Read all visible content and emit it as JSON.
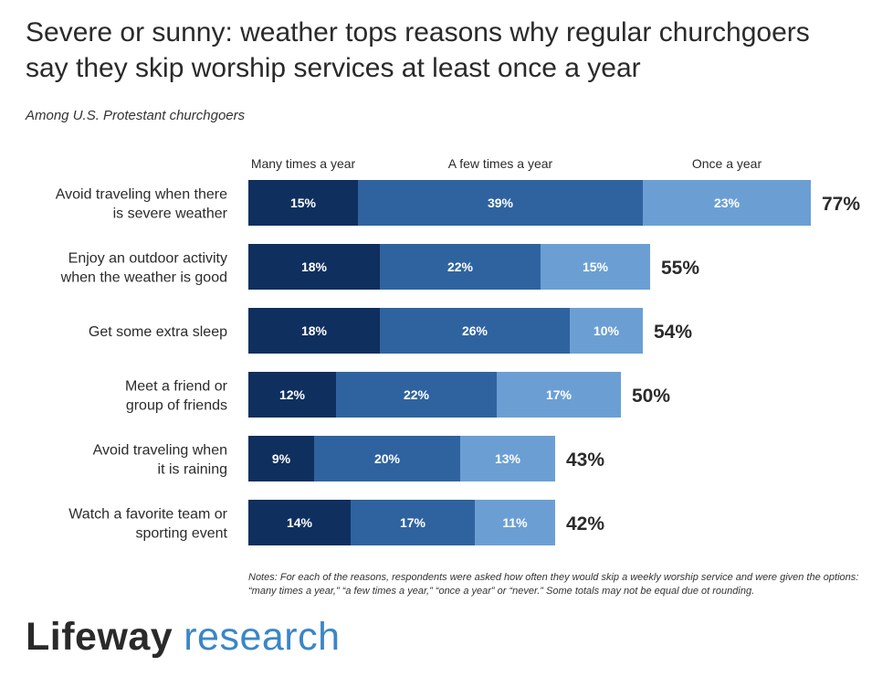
{
  "title": "Severe or sunny: weather tops reasons why regular churchgoers\nsay they skip worship services at least once a year",
  "subtitle": "Among U.S. Protestant churchgoers",
  "notes": "Notes: For each of the reasons, respondents were asked how often they would skip a weekly worship service and were given the options: “many times a year,” “a few times a year,” “once a year” or “never.” Some totals may not be equal due ot rounding.",
  "logo": {
    "brand": "Lifeway",
    "sub": "research"
  },
  "colors": {
    "many": "#0f2f5e",
    "few": "#2f63a0",
    "once": "#6b9fd4"
  },
  "chart_data": {
    "type": "bar",
    "orientation": "horizontal",
    "stacked": true,
    "categories": [
      "Avoid traveling when there is severe weather",
      "Enjoy an outdoor activity when the weather is good",
      "Get some extra sleep",
      "Meet a friend or group of friends",
      "Avoid traveling when it is raining",
      "Watch a favorite team or sporting event"
    ],
    "category_lines": [
      [
        "Avoid traveling when there",
        "is severe weather"
      ],
      [
        "Enjoy an outdoor activity",
        "when the weather is good"
      ],
      [
        "Get some extra sleep"
      ],
      [
        "Meet a friend or",
        "group of friends"
      ],
      [
        "Avoid traveling when",
        "it is raining"
      ],
      [
        "Watch a favorite team or",
        "sporting event"
      ]
    ],
    "series": [
      {
        "name": "Many times a year",
        "values": [
          15,
          18,
          18,
          12,
          9,
          14
        ]
      },
      {
        "name": "A few times a year",
        "values": [
          39,
          22,
          26,
          22,
          20,
          17
        ]
      },
      {
        "name": "Once a year",
        "values": [
          23,
          15,
          10,
          17,
          13,
          11
        ]
      }
    ],
    "totals": [
      77,
      55,
      54,
      50,
      43,
      42
    ],
    "value_suffix": "%",
    "legend_position": "top"
  }
}
